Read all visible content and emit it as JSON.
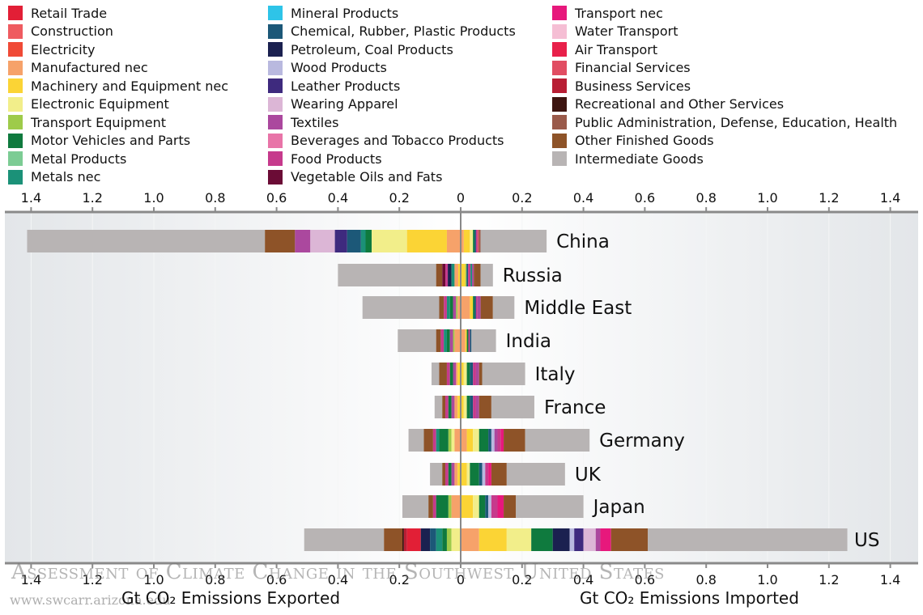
{
  "chart_data": {
    "type": "bar",
    "orientation": "horizontal",
    "stacked": true,
    "xlabel_left": "Gt CO₂ Emissions Exported",
    "xlabel_right": "Gt CO₂ Emissions Imported",
    "xlim": [
      -1.45,
      1.45
    ],
    "ticks": [
      -1.4,
      -1.2,
      -1.0,
      -0.8,
      -0.6,
      -0.4,
      -0.2,
      0,
      0.2,
      0.4,
      0.6,
      0.8,
      1.0,
      1.2,
      1.4
    ],
    "tick_labels": [
      "1.4",
      "1.2",
      "1.0",
      "0.8",
      "0.6",
      "0.4",
      "0.2",
      "0",
      "0.2",
      "0.4",
      "0.6",
      "0.8",
      "1.0",
      "1.2",
      "1.4"
    ],
    "legend_placement": "top",
    "legend": [
      {
        "name": "Retail Trade",
        "color": "#e21f36"
      },
      {
        "name": "Construction",
        "color": "#ef5b60"
      },
      {
        "name": "Electricity",
        "color": "#f04a36"
      },
      {
        "name": "Manufactured nec",
        "color": "#f6a26a"
      },
      {
        "name": "Machinery and Equipment nec",
        "color": "#fbd435"
      },
      {
        "name": "Electronic Equipment",
        "color": "#f2ee8a"
      },
      {
        "name": "Transport Equipment",
        "color": "#9ecb4a"
      },
      {
        "name": "Motor Vehicles and Parts",
        "color": "#0f7a3e"
      },
      {
        "name": "Metal Products",
        "color": "#7ccc94"
      },
      {
        "name": "Metals nec",
        "color": "#1b9178"
      },
      {
        "name": "Mineral Products",
        "color": "#2ec4e8"
      },
      {
        "name": "Chemical, Rubber, Plastic Products",
        "color": "#1c5878"
      },
      {
        "name": "Petroleum, Coal Products",
        "color": "#1b2150"
      },
      {
        "name": "Wood Products",
        "color": "#b9b9df"
      },
      {
        "name": "Leather Products",
        "color": "#3e2a7e"
      },
      {
        "name": "Wearing Apparel",
        "color": "#dcb6d6"
      },
      {
        "name": "Textiles",
        "color": "#ab489e"
      },
      {
        "name": "Beverages and Tobacco Products",
        "color": "#e874a8"
      },
      {
        "name": "Food Products",
        "color": "#c63a8c"
      },
      {
        "name": "Vegetable Oils and Fats",
        "color": "#6b0c36"
      },
      {
        "name": "Transport nec",
        "color": "#e7187c"
      },
      {
        "name": "Water Transport",
        "color": "#f5bed4"
      },
      {
        "name": "Air Transport",
        "color": "#e8204a"
      },
      {
        "name": "Financial Services",
        "color": "#e14d62"
      },
      {
        "name": "Business Services",
        "color": "#b81e34"
      },
      {
        "name": "Recreational and Other Services",
        "color": "#3d1510"
      },
      {
        "name": "Public Administration, Defense, Education, Health",
        "color": "#9a5a4a"
      },
      {
        "name": "Other Finished Goods",
        "color": "#8e5328"
      },
      {
        "name": "Intermediate Goods",
        "color": "#b8b4b4"
      }
    ],
    "categories": [
      "China",
      "Russia",
      "Middle East",
      "India",
      "Italy",
      "France",
      "Germany",
      "UK",
      "Japan",
      "US"
    ],
    "bars": [
      {
        "category": "China",
        "exported": [
          [
            "Intermediate Goods",
            0.775
          ],
          [
            "Other Finished Goods",
            0.098
          ],
          [
            "Textiles",
            0.05
          ],
          [
            "Wearing Apparel",
            0.08
          ],
          [
            "Leather Products",
            0.04
          ],
          [
            "Chemical, Rubber, Plastic Products",
            0.045
          ],
          [
            "Metals nec",
            0.015
          ],
          [
            "Motor Vehicles and Parts",
            0.02
          ],
          [
            "Electronic Equipment",
            0.115
          ],
          [
            "Machinery and Equipment nec",
            0.13
          ],
          [
            "Manufactured nec",
            0.045
          ]
        ],
        "imported": [
          [
            "Manufactured nec",
            0.01
          ],
          [
            "Machinery and Equipment nec",
            0.02
          ],
          [
            "Electronic Equipment",
            0.01
          ],
          [
            "Motor Vehicles and Parts",
            0.005
          ],
          [
            "Chemical, Rubber, Plastic Products",
            0.005
          ],
          [
            "Food Products",
            0.005
          ],
          [
            "Financial Services",
            0.004
          ],
          [
            "Public Administration, Defense, Education, Health",
            0.006
          ],
          [
            "Intermediate Goods",
            0.215
          ]
        ]
      },
      {
        "category": "Russia",
        "exported": [
          [
            "Intermediate Goods",
            0.32
          ],
          [
            "Other Finished Goods",
            0.02
          ],
          [
            "Vegetable Oils and Fats",
            0.01
          ],
          [
            "Food Products",
            0.008
          ],
          [
            "Petroleum, Coal Products",
            0.012
          ],
          [
            "Metals nec",
            0.01
          ],
          [
            "Manufactured nec",
            0.012
          ],
          [
            "Machinery and Equipment nec",
            0.008
          ]
        ],
        "imported": [
          [
            "Machinery and Equipment nec",
            0.015
          ],
          [
            "Transport Equipment",
            0.004
          ],
          [
            "Chemical, Rubber, Plastic Products",
            0.005
          ],
          [
            "Food Products",
            0.008
          ],
          [
            "Metals nec",
            0.005
          ],
          [
            "Textiles",
            0.005
          ],
          [
            "Public Administration, Defense, Education, Health",
            0.003
          ],
          [
            "Other Finished Goods",
            0.02
          ],
          [
            "Intermediate Goods",
            0.04
          ]
        ]
      },
      {
        "category": "Middle East",
        "exported": [
          [
            "Intermediate Goods",
            0.25
          ],
          [
            "Other Finished Goods",
            0.015
          ],
          [
            "Food Products",
            0.01
          ],
          [
            "Metals nec",
            0.01
          ],
          [
            "Motor Vehicles and Parts",
            0.01
          ],
          [
            "Textiles",
            0.01
          ],
          [
            "Transport Equipment",
            0.005
          ],
          [
            "Manufactured nec",
            0.01
          ]
        ],
        "imported": [
          [
            "Manufactured nec",
            0.03
          ],
          [
            "Machinery and Equipment nec",
            0.01
          ],
          [
            "Motor Vehicles and Parts",
            0.005
          ],
          [
            "Chemical, Rubber, Plastic Products",
            0.005
          ],
          [
            "Food Products",
            0.005
          ],
          [
            "Textiles",
            0.01
          ],
          [
            "Other Finished Goods",
            0.04
          ],
          [
            "Intermediate Goods",
            0.07
          ]
        ]
      },
      {
        "category": "India",
        "exported": [
          [
            "Intermediate Goods",
            0.125
          ],
          [
            "Other Finished Goods",
            0.015
          ],
          [
            "Food Products",
            0.01
          ],
          [
            "Metals nec",
            0.01
          ],
          [
            "Motor Vehicles and Parts",
            0.01
          ],
          [
            "Textiles",
            0.01
          ],
          [
            "Transport Equipment",
            0.005
          ],
          [
            "Manufactured nec",
            0.02
          ]
        ],
        "imported": [
          [
            "Manufactured nec",
            0.015
          ],
          [
            "Machinery and Equipment nec",
            0.005
          ],
          [
            "Motor Vehicles and Parts",
            0.005
          ],
          [
            "Food Products",
            0.005
          ],
          [
            "Chemical, Rubber, Plastic Products",
            0.005
          ],
          [
            "Intermediate Goods",
            0.08
          ]
        ]
      },
      {
        "category": "Italy",
        "exported": [
          [
            "Intermediate Goods",
            0.025
          ],
          [
            "Other Finished Goods",
            0.025
          ],
          [
            "Food Products",
            0.01
          ],
          [
            "Motor Vehicles and Parts",
            0.01
          ],
          [
            "Textiles",
            0.01
          ],
          [
            "Manufactured nec",
            0.005
          ],
          [
            "Machinery and Equipment nec",
            0.01
          ]
        ],
        "imported": [
          [
            "Machinery and Equipment nec",
            0.01
          ],
          [
            "Electronic Equipment",
            0.01
          ],
          [
            "Motor Vehicles and Parts",
            0.01
          ],
          [
            "Chemical, Rubber, Plastic Products",
            0.01
          ],
          [
            "Food Products",
            0.01
          ],
          [
            "Textiles",
            0.01
          ],
          [
            "Other Finished Goods",
            0.01
          ],
          [
            "Intermediate Goods",
            0.14
          ]
        ]
      },
      {
        "category": "France",
        "exported": [
          [
            "Intermediate Goods",
            0.025
          ],
          [
            "Other Finished Goods",
            0.01
          ],
          [
            "Food Products",
            0.01
          ],
          [
            "Motor Vehicles and Parts",
            0.01
          ],
          [
            "Textiles",
            0.01
          ],
          [
            "Manufactured nec",
            0.01
          ],
          [
            "Machinery and Equipment nec",
            0.01
          ]
        ],
        "imported": [
          [
            "Machinery and Equipment nec",
            0.01
          ],
          [
            "Electronic Equipment",
            0.01
          ],
          [
            "Motor Vehicles and Parts",
            0.01
          ],
          [
            "Chemical, Rubber, Plastic Products",
            0.01
          ],
          [
            "Food Products",
            0.01
          ],
          [
            "Textiles",
            0.01
          ],
          [
            "Other Finished Goods",
            0.04
          ],
          [
            "Intermediate Goods",
            0.14
          ]
        ]
      },
      {
        "category": "Germany",
        "exported": [
          [
            "Intermediate Goods",
            0.05
          ],
          [
            "Other Finished Goods",
            0.03
          ],
          [
            "Food Products",
            0.01
          ],
          [
            "Metals nec",
            0.01
          ],
          [
            "Motor Vehicles and Parts",
            0.03
          ],
          [
            "Transport Equipment",
            0.01
          ],
          [
            "Electronic Equipment",
            0.01
          ],
          [
            "Manufactured nec",
            0.02
          ]
        ],
        "imported": [
          [
            "Manufactured nec",
            0.02
          ],
          [
            "Machinery and Equipment nec",
            0.02
          ],
          [
            "Electronic Equipment",
            0.02
          ],
          [
            "Motor Vehicles and Parts",
            0.03
          ],
          [
            "Chemical, Rubber, Plastic Products",
            0.01
          ],
          [
            "Wood Products",
            0.01
          ],
          [
            "Textiles",
            0.01
          ],
          [
            "Food Products",
            0.01
          ],
          [
            "Transport nec",
            0.01
          ],
          [
            "Other Finished Goods",
            0.07
          ],
          [
            "Intermediate Goods",
            0.21
          ]
        ]
      },
      {
        "category": "UK",
        "exported": [
          [
            "Intermediate Goods",
            0.04
          ],
          [
            "Other Finished Goods",
            0.01
          ],
          [
            "Food Products",
            0.01
          ],
          [
            "Motor Vehicles and Parts",
            0.01
          ],
          [
            "Textiles",
            0.01
          ],
          [
            "Manufactured nec",
            0.01
          ],
          [
            "Machinery and Equipment nec",
            0.01
          ]
        ],
        "imported": [
          [
            "Machinery and Equipment nec",
            0.02
          ],
          [
            "Electronic Equipment",
            0.01
          ],
          [
            "Motor Vehicles and Parts",
            0.03
          ],
          [
            "Chemical, Rubber, Plastic Products",
            0.01
          ],
          [
            "Wood Products",
            0.01
          ],
          [
            "Food Products",
            0.01
          ],
          [
            "Transport nec",
            0.01
          ],
          [
            "Other Finished Goods",
            0.05
          ],
          [
            "Intermediate Goods",
            0.19
          ]
        ]
      },
      {
        "category": "Japan",
        "exported": [
          [
            "Intermediate Goods",
            0.085
          ],
          [
            "Other Finished Goods",
            0.015
          ],
          [
            "Food Products",
            0.01
          ],
          [
            "Motor Vehicles and Parts",
            0.04
          ],
          [
            "Transport Equipment",
            0.01
          ],
          [
            "Manufactured nec",
            0.03
          ]
        ],
        "imported": [
          [
            "Machinery and Equipment nec",
            0.04
          ],
          [
            "Electronic Equipment",
            0.02
          ],
          [
            "Motor Vehicles and Parts",
            0.02
          ],
          [
            "Chemical, Rubber, Plastic Products",
            0.01
          ],
          [
            "Wood Products",
            0.01
          ],
          [
            "Food Products",
            0.02
          ],
          [
            "Transport nec",
            0.02
          ],
          [
            "Other Finished Goods",
            0.04
          ],
          [
            "Intermediate Goods",
            0.22
          ]
        ]
      },
      {
        "category": "US",
        "exported": [
          [
            "Intermediate Goods",
            0.26
          ],
          [
            "Other Finished Goods",
            0.06
          ],
          [
            "Recreational and Other Services",
            0.005
          ],
          [
            "Business Services",
            0.01
          ],
          [
            "Retail Trade",
            0.045
          ],
          [
            "Petroleum, Coal Products",
            0.03
          ],
          [
            "Chemical, Rubber, Plastic Products",
            0.02
          ],
          [
            "Metals nec",
            0.02
          ],
          [
            "Motor Vehicles and Parts",
            0.015
          ],
          [
            "Transport Equipment",
            0.015
          ],
          [
            "Electronic Equipment",
            0.03
          ]
        ],
        "imported": [
          [
            "Manufactured nec",
            0.06
          ],
          [
            "Machinery and Equipment nec",
            0.09
          ],
          [
            "Electronic Equipment",
            0.08
          ],
          [
            "Motor Vehicles and Parts",
            0.07
          ],
          [
            "Petroleum, Coal Products",
            0.055
          ],
          [
            "Wood Products",
            0.015
          ],
          [
            "Leather Products",
            0.03
          ],
          [
            "Wearing Apparel",
            0.04
          ],
          [
            "Textiles",
            0.015
          ],
          [
            "Transport nec",
            0.035
          ],
          [
            "Other Finished Goods",
            0.12
          ],
          [
            "Intermediate Goods",
            0.65
          ]
        ]
      }
    ]
  },
  "watermark": {
    "text": "Assessment of Climate Change in the Southwest United States",
    "url": "www.swcarr.arizona.edu"
  }
}
